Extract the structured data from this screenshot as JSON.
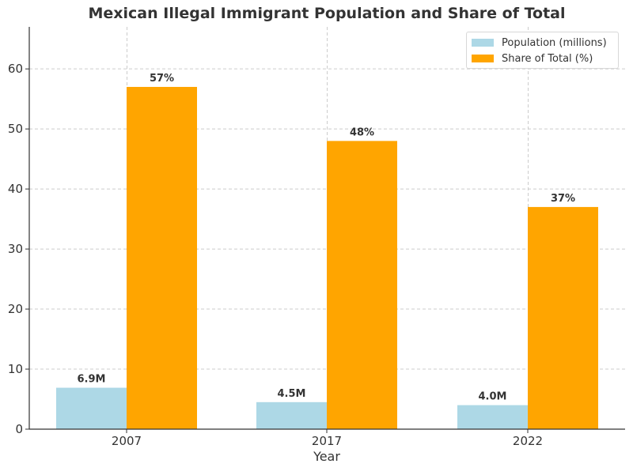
{
  "chart_data": {
    "type": "bar",
    "title": "Mexican Illegal Immigrant Population and Share of Total",
    "xlabel": "Year",
    "ylabel": "",
    "categories": [
      "2007",
      "2017",
      "2022"
    ],
    "ylim": [
      0,
      67
    ],
    "yticks": [
      0,
      10,
      20,
      30,
      40,
      50,
      60
    ],
    "grid": true,
    "legend_position": "top-right",
    "series": [
      {
        "name": "Population (millions)",
        "values": [
          6.9,
          4.5,
          4.0
        ],
        "labels": [
          "6.9M",
          "4.5M",
          "4.0M"
        ],
        "color": "#add8e6"
      },
      {
        "name": "Share of Total (%)",
        "values": [
          57,
          48,
          37
        ],
        "labels": [
          "57%",
          "48%",
          "37%"
        ],
        "color": "#ffa500"
      }
    ]
  }
}
